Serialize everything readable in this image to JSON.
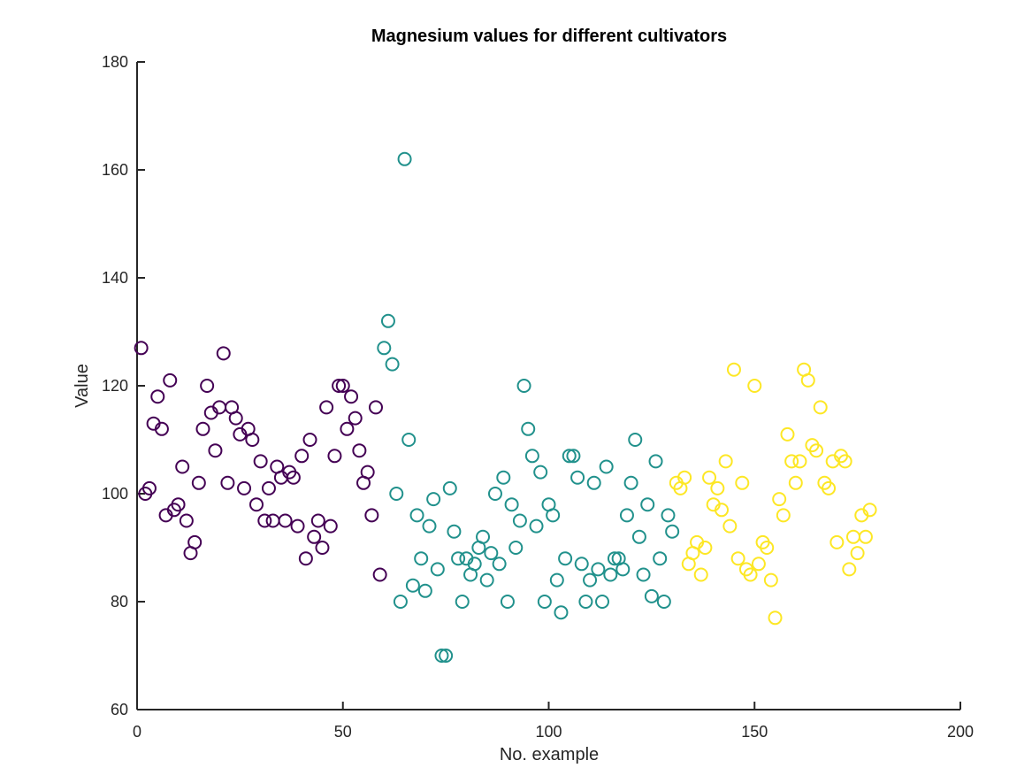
{
  "chart_data": {
    "type": "scatter",
    "title": "Magnesium values for different cultivators",
    "xlabel": "No. example",
    "ylabel": "Value",
    "xlim": [
      0,
      200
    ],
    "ylim": [
      60,
      180
    ],
    "xticks": [
      0,
      50,
      100,
      150,
      200
    ],
    "yticks": [
      60,
      80,
      100,
      120,
      140,
      160,
      180
    ],
    "grid": false,
    "legend": "none",
    "colors": [
      "#440154",
      "#21918c",
      "#fde725"
    ],
    "y": [
      127,
      100,
      101,
      113,
      118,
      112,
      96,
      121,
      97,
      98,
      105,
      95,
      89,
      91,
      102,
      112,
      120,
      115,
      108,
      116,
      126,
      102,
      116,
      114,
      111,
      101,
      112,
      110,
      98,
      106,
      95,
      101,
      95,
      105,
      103,
      95,
      104,
      103,
      94,
      107,
      88,
      110,
      92,
      95,
      90,
      116,
      94,
      107,
      120,
      120,
      112,
      118,
      114,
      108,
      102,
      104,
      96,
      116,
      85,
      127,
      132,
      124,
      100,
      80,
      162,
      110,
      83,
      96,
      88,
      82,
      94,
      99,
      86,
      70,
      70,
      101,
      93,
      88,
      80,
      88,
      85,
      87,
      90,
      92,
      84,
      89,
      100,
      87,
      103,
      80,
      98,
      90,
      95,
      120,
      112,
      107,
      94,
      104,
      80,
      98,
      96,
      84,
      78,
      88,
      107,
      107,
      103,
      87,
      80,
      84,
      102,
      86,
      80,
      105,
      85,
      88,
      88,
      86,
      96,
      102,
      110,
      92,
      85,
      98,
      81,
      106,
      88,
      80,
      96,
      93,
      102,
      101,
      103,
      87,
      89,
      91,
      85,
      90,
      103,
      98,
      101,
      97,
      106,
      94,
      123,
      88,
      102,
      86,
      85,
      120,
      87,
      91,
      90,
      84,
      77,
      99,
      96,
      111,
      106,
      102,
      106,
      123,
      121,
      109,
      108,
      116,
      102,
      101,
      106,
      91,
      107,
      106,
      86,
      92,
      89,
      96,
      92,
      97
    ],
    "classes": [
      1,
      1,
      1,
      1,
      1,
      1,
      1,
      1,
      1,
      1,
      1,
      1,
      1,
      1,
      1,
      1,
      1,
      1,
      1,
      1,
      1,
      1,
      1,
      1,
      1,
      1,
      1,
      1,
      1,
      1,
      1,
      1,
      1,
      1,
      1,
      1,
      1,
      1,
      1,
      1,
      1,
      1,
      1,
      1,
      1,
      1,
      1,
      1,
      1,
      1,
      1,
      1,
      1,
      1,
      1,
      1,
      1,
      1,
      1,
      2,
      2,
      2,
      2,
      2,
      2,
      2,
      2,
      2,
      2,
      2,
      2,
      2,
      2,
      2,
      2,
      2,
      2,
      2,
      2,
      2,
      2,
      2,
      2,
      2,
      2,
      2,
      2,
      2,
      2,
      2,
      2,
      2,
      2,
      2,
      2,
      2,
      2,
      2,
      2,
      2,
      2,
      2,
      2,
      2,
      2,
      2,
      2,
      2,
      2,
      2,
      2,
      2,
      2,
      2,
      2,
      2,
      2,
      2,
      2,
      2,
      2,
      2,
      2,
      2,
      2,
      2,
      2,
      2,
      2,
      2,
      3,
      3,
      3,
      3,
      3,
      3,
      3,
      3,
      3,
      3,
      3,
      3,
      3,
      3,
      3,
      3,
      3,
      3,
      3,
      3,
      3,
      3,
      3,
      3,
      3,
      3,
      3,
      3,
      3,
      3,
      3,
      3,
      3,
      3,
      3,
      3,
      3,
      3,
      3,
      3,
      3,
      3,
      3,
      3,
      3,
      3,
      3,
      3
    ]
  }
}
